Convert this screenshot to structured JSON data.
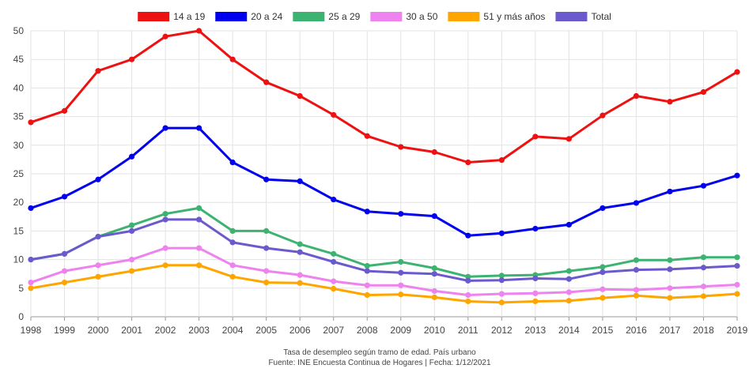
{
  "chart_data": {
    "type": "line",
    "x": [
      "1998",
      "1999",
      "2000",
      "2001",
      "2002",
      "2003",
      "2004",
      "2005",
      "2006",
      "2007",
      "2008",
      "2009",
      "2010",
      "2011",
      "2012",
      "2013",
      "2014",
      "2015",
      "2016",
      "2017",
      "2018",
      "2019"
    ],
    "ylim": [
      0,
      50
    ],
    "yticks": [
      0,
      5,
      10,
      15,
      20,
      25,
      30,
      35,
      40,
      45,
      50
    ],
    "grid": true,
    "legend_position": "top",
    "series": [
      {
        "name": "14 a 19",
        "color": "#ee1111",
        "values": [
          34,
          36,
          43,
          45,
          49,
          50,
          45,
          41,
          38.6,
          35.3,
          31.6,
          29.7,
          28.8,
          27,
          27.4,
          31.5,
          31.1,
          35.2,
          38.6,
          37.6,
          39.3,
          42.8
        ]
      },
      {
        "name": "20 a 24",
        "color": "#0000ee",
        "values": [
          19,
          21,
          24,
          28,
          33,
          33,
          27,
          24,
          23.7,
          20.5,
          18.4,
          18,
          17.6,
          14.2,
          14.6,
          15.4,
          16.1,
          19,
          19.9,
          21.9,
          22.9,
          24.7
        ]
      },
      {
        "name": "25 a 29",
        "color": "#3cb371",
        "values": [
          10,
          11,
          14,
          16,
          18,
          19,
          15,
          15,
          12.7,
          11,
          8.9,
          9.6,
          8.5,
          7,
          7.2,
          7.3,
          8,
          8.7,
          9.9,
          9.9,
          10.4,
          10.4
        ]
      },
      {
        "name": "30 a 50",
        "color": "#ee82ee",
        "values": [
          6,
          8,
          9,
          10,
          12,
          12,
          9,
          8,
          7.3,
          6.2,
          5.5,
          5.5,
          4.5,
          3.8,
          4,
          4.1,
          4.3,
          4.8,
          4.7,
          5,
          5.3,
          5.6
        ]
      },
      {
        "name": "51 y más años",
        "color": "#ffa500",
        "values": [
          5,
          6,
          7,
          8,
          9,
          9,
          7,
          6,
          5.9,
          4.9,
          3.8,
          3.9,
          3.4,
          2.7,
          2.5,
          2.7,
          2.8,
          3.3,
          3.7,
          3.3,
          3.6,
          4
        ]
      },
      {
        "name": "Total",
        "color": "#6a5acd",
        "values": [
          10,
          11,
          14,
          15,
          17,
          17,
          13,
          12,
          11.3,
          9.6,
          8,
          7.7,
          7.5,
          6.3,
          6.4,
          6.7,
          6.6,
          7.8,
          8.2,
          8.3,
          8.6,
          8.9
        ]
      }
    ],
    "caption": {
      "line1": "Tasa de desempleo según tramo de edad. País urbano",
      "line2": "Fuente: INE Encuesta Continua de Hogares | Fecha: 1/12/2021"
    }
  }
}
